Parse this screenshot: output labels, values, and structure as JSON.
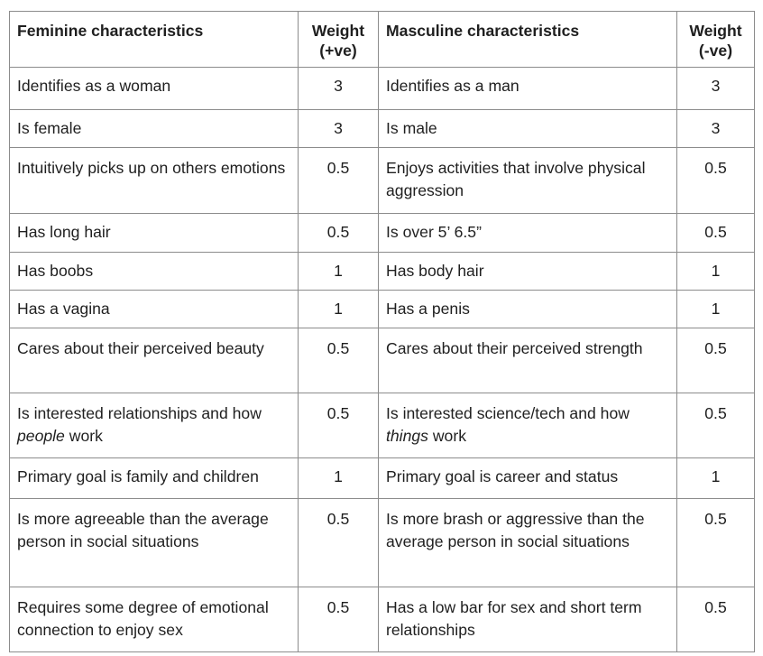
{
  "table": {
    "headers": {
      "feminine": "Feminine characteristics",
      "weight_pos": "Weight\n(+ve)",
      "masculine": "Masculine characteristics",
      "weight_neg": "Weight\n(-ve)"
    },
    "rows": [
      {
        "fem": "Identifies as a woman",
        "w1": "3",
        "mas": "Identifies as a man",
        "w2": "3"
      },
      {
        "fem": "Is female",
        "w1": "3",
        "mas": "Is male",
        "w2": "3"
      },
      {
        "fem": "Intuitively picks up on others emotions",
        "w1": "0.5",
        "mas": "Enjoys activities that involve physical aggression",
        "w2": "0.5"
      },
      {
        "fem": "Has long hair",
        "w1": "0.5",
        "mas": "Is over 5’ 6.5”",
        "w2": "0.5"
      },
      {
        "fem": "Has boobs",
        "w1": "1",
        "mas": "Has body hair",
        "w2": "1"
      },
      {
        "fem": "Has a vagina",
        "w1": "1",
        "mas": "Has a penis",
        "w2": "1"
      },
      {
        "fem": "Cares about their perceived beauty",
        "w1": "0.5",
        "mas": "Cares about their perceived strength",
        "w2": "0.5"
      },
      {
        "fem_before": "Is interested relationships and how",
        "fem_em": "people",
        "fem_after": "work",
        "w1": "0.5",
        "mas_before": "Is interested science/tech and how",
        "mas_em": "things",
        "mas_after": "work",
        "w2": "0.5"
      },
      {
        "fem": "Primary goal is family and children",
        "w1": "1",
        "mas": "Primary goal is career and status",
        "w2": "1"
      },
      {
        "fem": "Is more agreeable than the average person in social situations",
        "w1": "0.5",
        "mas": "Is more brash or aggressive than the average person in social situations",
        "w2": "0.5"
      },
      {
        "fem": "Requires some degree of emotional connection to enjoy sex",
        "w1": "0.5",
        "mas": "Has a low bar for sex and short term relationships",
        "w2": "0.5"
      }
    ]
  }
}
